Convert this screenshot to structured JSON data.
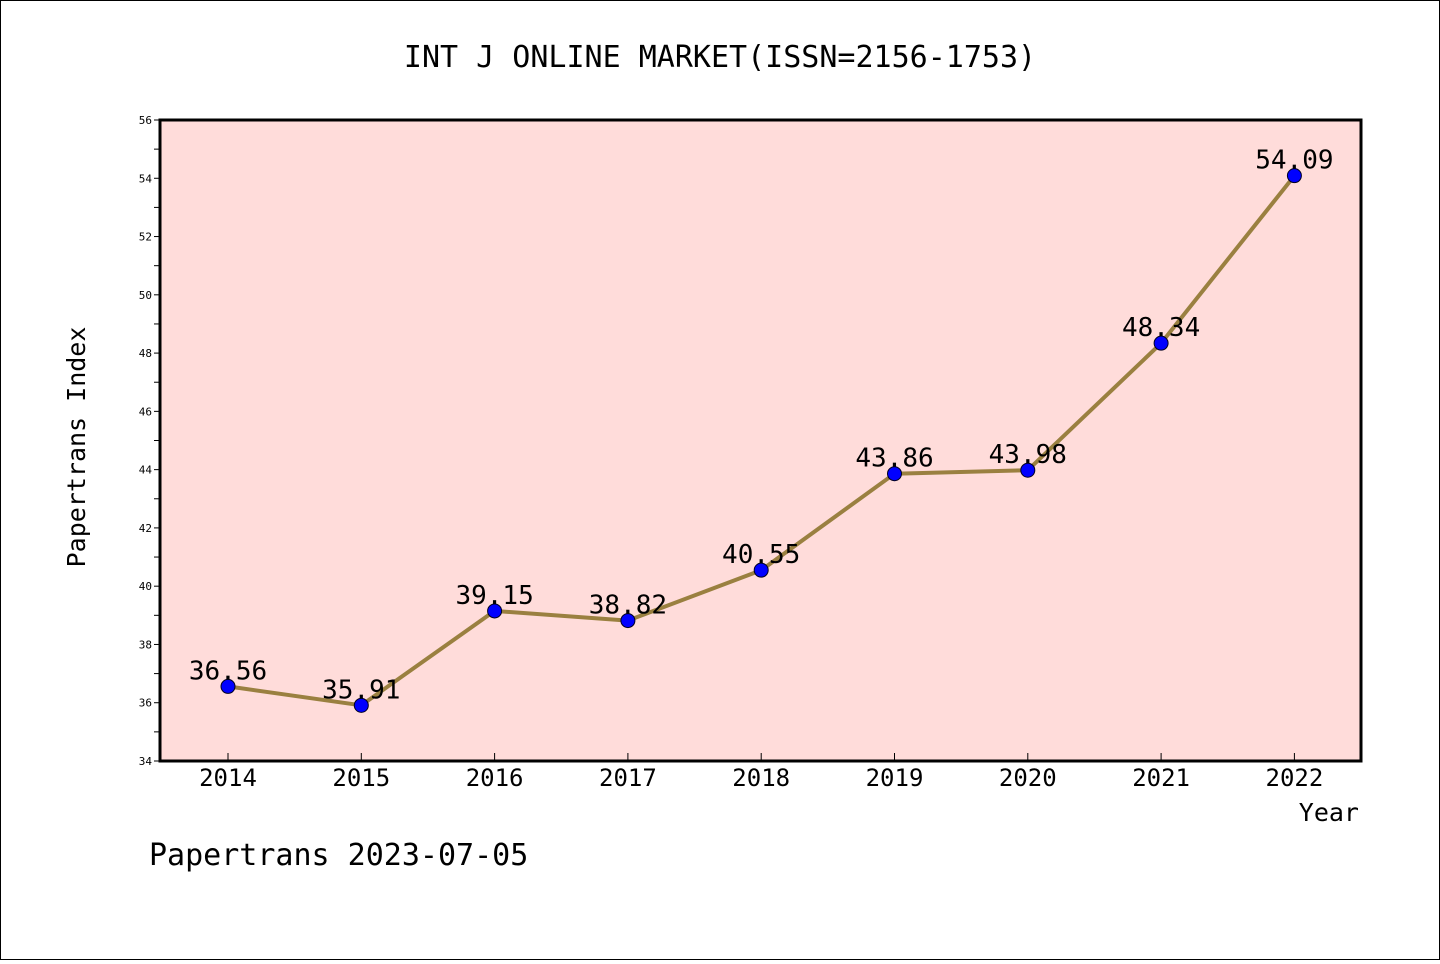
{
  "chart_data": {
    "type": "line",
    "title": "INT J ONLINE MARKET(ISSN=2156-1753)",
    "xlabel": "Year",
    "ylabel": "Papertrans Index",
    "categories": [
      "2014",
      "2015",
      "2016",
      "2017",
      "2018",
      "2019",
      "2020",
      "2021",
      "2022"
    ],
    "series": [
      {
        "values": [
          36.56,
          35.91,
          39.15,
          38.82,
          40.55,
          43.86,
          43.98,
          48.34,
          54.09
        ],
        "labels": [
          "36.56",
          "35.91",
          "39.15",
          "38.82",
          "40.55",
          "43.86",
          "43.98",
          "48.34",
          "54.09"
        ],
        "line_color": "#9a8040",
        "marker_color": "#0000ff"
      }
    ],
    "ylim": [
      34,
      56
    ],
    "yticks": [
      "34",
      "36",
      "38",
      "40",
      "42",
      "44",
      "46",
      "48",
      "50",
      "52",
      "54",
      "56"
    ],
    "plot_background": "#ffdcda",
    "grid": false,
    "legend": false
  },
  "footer": {
    "credit": "Papertrans 2023-07-05"
  }
}
